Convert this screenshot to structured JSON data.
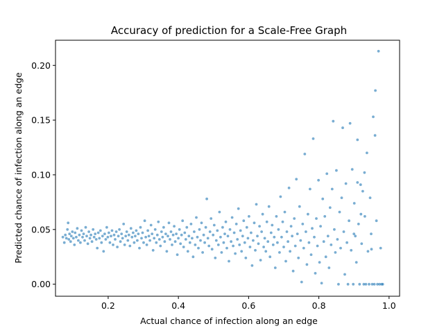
{
  "chart_data": {
    "type": "scatter",
    "title": "Accuracy of prediction for a Scale-Free Graph",
    "xlabel": "Actual chance of infection along an edge",
    "ylabel": "Predicted chance of infection along an edge",
    "xlim": [
      0.05,
      1.03
    ],
    "ylim": [
      -0.011,
      0.223
    ],
    "xticks": [
      0.2,
      0.4,
      0.6,
      0.8,
      1.0
    ],
    "xtick_labels": [
      "0.2",
      "0.4",
      "0.6",
      "0.8",
      "1.0"
    ],
    "yticks": [
      0.0,
      0.05,
      0.1,
      0.15,
      0.2
    ],
    "ytick_labels": [
      "0.00",
      "0.05",
      "0.10",
      "0.15",
      "0.20"
    ],
    "grid": false,
    "marker_color": "#1f77b4",
    "marker_alpha": 0.6,
    "points": [
      [
        0.071,
        0.043
      ],
      [
        0.075,
        0.038
      ],
      [
        0.078,
        0.045
      ],
      [
        0.081,
        0.042
      ],
      [
        0.084,
        0.05
      ],
      [
        0.086,
        0.056
      ],
      [
        0.088,
        0.041
      ],
      [
        0.09,
        0.046
      ],
      [
        0.093,
        0.039
      ],
      [
        0.095,
        0.044
      ],
      [
        0.098,
        0.048
      ],
      [
        0.101,
        0.042
      ],
      [
        0.104,
        0.036
      ],
      [
        0.106,
        0.047
      ],
      [
        0.109,
        0.043
      ],
      [
        0.112,
        0.051
      ],
      [
        0.115,
        0.04
      ],
      [
        0.118,
        0.045
      ],
      [
        0.121,
        0.038
      ],
      [
        0.124,
        0.049
      ],
      [
        0.127,
        0.043
      ],
      [
        0.13,
        0.046
      ],
      [
        0.133,
        0.04
      ],
      [
        0.136,
        0.052
      ],
      [
        0.139,
        0.044
      ],
      [
        0.142,
        0.037
      ],
      [
        0.145,
        0.048
      ],
      [
        0.148,
        0.042
      ],
      [
        0.151,
        0.045
      ],
      [
        0.154,
        0.039
      ],
      [
        0.157,
        0.05
      ],
      [
        0.16,
        0.043
      ],
      [
        0.163,
        0.046
      ],
      [
        0.166,
        0.041
      ],
      [
        0.169,
        0.033
      ],
      [
        0.172,
        0.047
      ],
      [
        0.175,
        0.042
      ],
      [
        0.178,
        0.049
      ],
      [
        0.181,
        0.038
      ],
      [
        0.184,
        0.044
      ],
      [
        0.187,
        0.03
      ],
      [
        0.19,
        0.046
      ],
      [
        0.193,
        0.041
      ],
      [
        0.196,
        0.052
      ],
      [
        0.199,
        0.043
      ],
      [
        0.202,
        0.047
      ],
      [
        0.205,
        0.038
      ],
      [
        0.208,
        0.044
      ],
      [
        0.211,
        0.049
      ],
      [
        0.214,
        0.036
      ],
      [
        0.217,
        0.045
      ],
      [
        0.22,
        0.041
      ],
      [
        0.223,
        0.048
      ],
      [
        0.226,
        0.034
      ],
      [
        0.229,
        0.044
      ],
      [
        0.232,
        0.05
      ],
      [
        0.235,
        0.039
      ],
      [
        0.238,
        0.046
      ],
      [
        0.241,
        0.042
      ],
      [
        0.244,
        0.055
      ],
      [
        0.247,
        0.036
      ],
      [
        0.25,
        0.044
      ],
      [
        0.253,
        0.048
      ],
      [
        0.256,
        0.04
      ],
      [
        0.259,
        0.045
      ],
      [
        0.262,
        0.035
      ],
      [
        0.265,
        0.051
      ],
      [
        0.268,
        0.043
      ],
      [
        0.271,
        0.047
      ],
      [
        0.274,
        0.038
      ],
      [
        0.277,
        0.044
      ],
      [
        0.28,
        0.049
      ],
      [
        0.283,
        0.04
      ],
      [
        0.286,
        0.046
      ],
      [
        0.289,
        0.033
      ],
      [
        0.292,
        0.052
      ],
      [
        0.295,
        0.042
      ],
      [
        0.298,
        0.047
      ],
      [
        0.301,
        0.038
      ],
      [
        0.304,
        0.058
      ],
      [
        0.307,
        0.043
      ],
      [
        0.31,
        0.036
      ],
      [
        0.313,
        0.049
      ],
      [
        0.316,
        0.044
      ],
      [
        0.319,
        0.04
      ],
      [
        0.322,
        0.054
      ],
      [
        0.325,
        0.046
      ],
      [
        0.328,
        0.031
      ],
      [
        0.331,
        0.042
      ],
      [
        0.334,
        0.05
      ],
      [
        0.337,
        0.038
      ],
      [
        0.34,
        0.045
      ],
      [
        0.343,
        0.057
      ],
      [
        0.346,
        0.041
      ],
      [
        0.349,
        0.035
      ],
      [
        0.352,
        0.048
      ],
      [
        0.355,
        0.043
      ],
      [
        0.358,
        0.052
      ],
      [
        0.361,
        0.039
      ],
      [
        0.364,
        0.046
      ],
      [
        0.367,
        0.03
      ],
      [
        0.37,
        0.044
      ],
      [
        0.373,
        0.056
      ],
      [
        0.376,
        0.041
      ],
      [
        0.379,
        0.048
      ],
      [
        0.382,
        0.036
      ],
      [
        0.385,
        0.045
      ],
      [
        0.388,
        0.053
      ],
      [
        0.391,
        0.039
      ],
      [
        0.394,
        0.046
      ],
      [
        0.397,
        0.027
      ],
      [
        0.4,
        0.042
      ],
      [
        0.403,
        0.05
      ],
      [
        0.406,
        0.037
      ],
      [
        0.409,
        0.045
      ],
      [
        0.412,
        0.058
      ],
      [
        0.415,
        0.034
      ],
      [
        0.418,
        0.047
      ],
      [
        0.421,
        0.041
      ],
      [
        0.424,
        0.052
      ],
      [
        0.427,
        0.03
      ],
      [
        0.43,
        0.044
      ],
      [
        0.433,
        0.038
      ],
      [
        0.436,
        0.055
      ],
      [
        0.439,
        0.042
      ],
      [
        0.442,
        0.025
      ],
      [
        0.445,
        0.048
      ],
      [
        0.448,
        0.036
      ],
      [
        0.451,
        0.061
      ],
      [
        0.454,
        0.043
      ],
      [
        0.457,
        0.033
      ],
      [
        0.46,
        0.05
      ],
      [
        0.463,
        0.04
      ],
      [
        0.466,
        0.056
      ],
      [
        0.469,
        0.029
      ],
      [
        0.472,
        0.045
      ],
      [
        0.475,
        0.038
      ],
      [
        0.478,
        0.052
      ],
      [
        0.481,
        0.078
      ],
      [
        0.484,
        0.042
      ],
      [
        0.487,
        0.035
      ],
      [
        0.49,
        0.048
      ],
      [
        0.493,
        0.06
      ],
      [
        0.496,
        0.032
      ],
      [
        0.499,
        0.045
      ],
      [
        0.502,
        0.054
      ],
      [
        0.505,
        0.024
      ],
      [
        0.508,
        0.04
      ],
      [
        0.511,
        0.049
      ],
      [
        0.514,
        0.036
      ],
      [
        0.517,
        0.066
      ],
      [
        0.52,
        0.043
      ],
      [
        0.523,
        0.029
      ],
      [
        0.526,
        0.052
      ],
      [
        0.529,
        0.038
      ],
      [
        0.532,
        0.046
      ],
      [
        0.535,
        0.057
      ],
      [
        0.538,
        0.033
      ],
      [
        0.541,
        0.044
      ],
      [
        0.544,
        0.021
      ],
      [
        0.547,
        0.05
      ],
      [
        0.55,
        0.039
      ],
      [
        0.553,
        0.061
      ],
      [
        0.556,
        0.035
      ],
      [
        0.559,
        0.047
      ],
      [
        0.562,
        0.028
      ],
      [
        0.565,
        0.055
      ],
      [
        0.568,
        0.041
      ],
      [
        0.571,
        0.069
      ],
      [
        0.574,
        0.036
      ],
      [
        0.577,
        0.049
      ],
      [
        0.58,
        0.03
      ],
      [
        0.583,
        0.044
      ],
      [
        0.586,
        0.058
      ],
      [
        0.589,
        0.038
      ],
      [
        0.592,
        0.024
      ],
      [
        0.595,
        0.052
      ],
      [
        0.598,
        0.042
      ],
      [
        0.601,
        0.062
      ],
      [
        0.604,
        0.034
      ],
      [
        0.607,
        0.047
      ],
      [
        0.61,
        0.017
      ],
      [
        0.613,
        0.04
      ],
      [
        0.616,
        0.056
      ],
      [
        0.619,
        0.031
      ],
      [
        0.622,
        0.073
      ],
      [
        0.625,
        0.044
      ],
      [
        0.628,
        0.037
      ],
      [
        0.631,
        0.053
      ],
      [
        0.634,
        0.022
      ],
      [
        0.637,
        0.048
      ],
      [
        0.64,
        0.064
      ],
      [
        0.643,
        0.034
      ],
      [
        0.646,
        0.042
      ],
      [
        0.649,
        0.03
      ],
      [
        0.652,
        0.057
      ],
      [
        0.655,
        0.039
      ],
      [
        0.658,
        0.071
      ],
      [
        0.661,
        0.025
      ],
      [
        0.664,
        0.047
      ],
      [
        0.667,
        0.054
      ],
      [
        0.67,
        0.036
      ],
      [
        0.673,
        0.043
      ],
      [
        0.676,
        0.015
      ],
      [
        0.679,
        0.062
      ],
      [
        0.682,
        0.038
      ],
      [
        0.685,
        0.05
      ],
      [
        0.688,
        0.029
      ],
      [
        0.691,
        0.08
      ],
      [
        0.694,
        0.043
      ],
      [
        0.697,
        0.057
      ],
      [
        0.7,
        0.034
      ],
      [
        0.703,
        0.066
      ],
      [
        0.706,
        0.021
      ],
      [
        0.709,
        0.048
      ],
      [
        0.712,
        0.039
      ],
      [
        0.715,
        0.088
      ],
      [
        0.718,
        0.03
      ],
      [
        0.721,
        0.053
      ],
      [
        0.724,
        0.044
      ],
      [
        0.727,
        0.012
      ],
      [
        0.73,
        0.06
      ],
      [
        0.733,
        0.035
      ],
      [
        0.736,
        0.096
      ],
      [
        0.739,
        0.046
      ],
      [
        0.742,
        0.024
      ],
      [
        0.745,
        0.071
      ],
      [
        0.748,
        0.04
      ],
      [
        0.751,
        0.002
      ],
      [
        0.754,
        0.055
      ],
      [
        0.757,
        0.033
      ],
      [
        0.76,
        0.119
      ],
      [
        0.763,
        0.048
      ],
      [
        0.766,
        0.018
      ],
      [
        0.769,
        0.064
      ],
      [
        0.772,
        0.038
      ],
      [
        0.775,
        0.087
      ],
      [
        0.778,
        0.027
      ],
      [
        0.781,
        0.051
      ],
      [
        0.784,
        0.133
      ],
      [
        0.787,
        0.043
      ],
      [
        0.79,
        0.01
      ],
      [
        0.793,
        0.06
      ],
      [
        0.796,
        0.035
      ],
      [
        0.799,
        0.095
      ],
      [
        0.802,
        0.02
      ],
      [
        0.805,
        0.053
      ],
      [
        0.808,
        0.001
      ],
      [
        0.811,
        0.078
      ],
      [
        0.814,
        0.039
      ],
      [
        0.817,
        0.062
      ],
      [
        0.82,
        0.025
      ],
      [
        0.823,
        0.101
      ],
      [
        0.826,
        0.044
      ],
      [
        0.829,
        0.015
      ],
      [
        0.832,
        0.07
      ],
      [
        0.835,
        0.036
      ],
      [
        0.838,
        0.087
      ],
      [
        0.841,
        0.149
      ],
      [
        0.844,
        0.05
      ],
      [
        0.847,
        0.029
      ],
      [
        0.85,
        0.104
      ],
      [
        0.853,
        0.041
      ],
      [
        0.856,
        0.0
      ],
      [
        0.859,
        0.066
      ],
      [
        0.862,
        0.033
      ],
      [
        0.865,
        0.079
      ],
      [
        0.868,
        0.143
      ],
      [
        0.871,
        0.048
      ],
      [
        0.874,
        0.009
      ],
      [
        0.877,
        0.092
      ],
      [
        0.88,
        0.038
      ],
      [
        0.883,
        0.0
      ],
      [
        0.886,
        0.058
      ],
      [
        0.889,
        0.147
      ],
      [
        0.892,
        0.031
      ],
      [
        0.895,
        0.105
      ],
      [
        0.898,
        0.0
      ],
      [
        0.901,
        0.074
      ],
      [
        0.904,
        0.044
      ],
      [
        0.907,
        0.02
      ],
      [
        0.91,
        0.132
      ],
      [
        0.913,
        0.055
      ],
      [
        0.916,
        0.0
      ],
      [
        0.919,
        0.091
      ],
      [
        0.922,
        0.037
      ],
      [
        0.925,
        0.085
      ],
      [
        0.928,
        0.0
      ],
      [
        0.931,
        0.062
      ],
      [
        0.934,
        0.0
      ],
      [
        0.937,
        0.12
      ],
      [
        0.94,
        0.03
      ],
      [
        0.943,
        0.0
      ],
      [
        0.946,
        0.079
      ],
      [
        0.949,
        0.046
      ],
      [
        0.952,
        0.0
      ],
      [
        0.955,
        0.153
      ],
      [
        0.958,
        0.0
      ],
      [
        0.961,
        0.177
      ],
      [
        0.964,
        0.058
      ],
      [
        0.967,
        0.0
      ],
      [
        0.97,
        0.213
      ],
      [
        0.973,
        0.0
      ],
      [
        0.976,
        0.033
      ],
      [
        0.979,
        0.0
      ],
      [
        0.982,
        0.0
      ],
      [
        0.93,
        0.102
      ],
      [
        0.96,
        0.136
      ],
      [
        0.91,
        0.093
      ],
      [
        0.95,
        0.032
      ],
      [
        0.9,
        0.046
      ],
      [
        0.92,
        0.064
      ]
    ]
  }
}
